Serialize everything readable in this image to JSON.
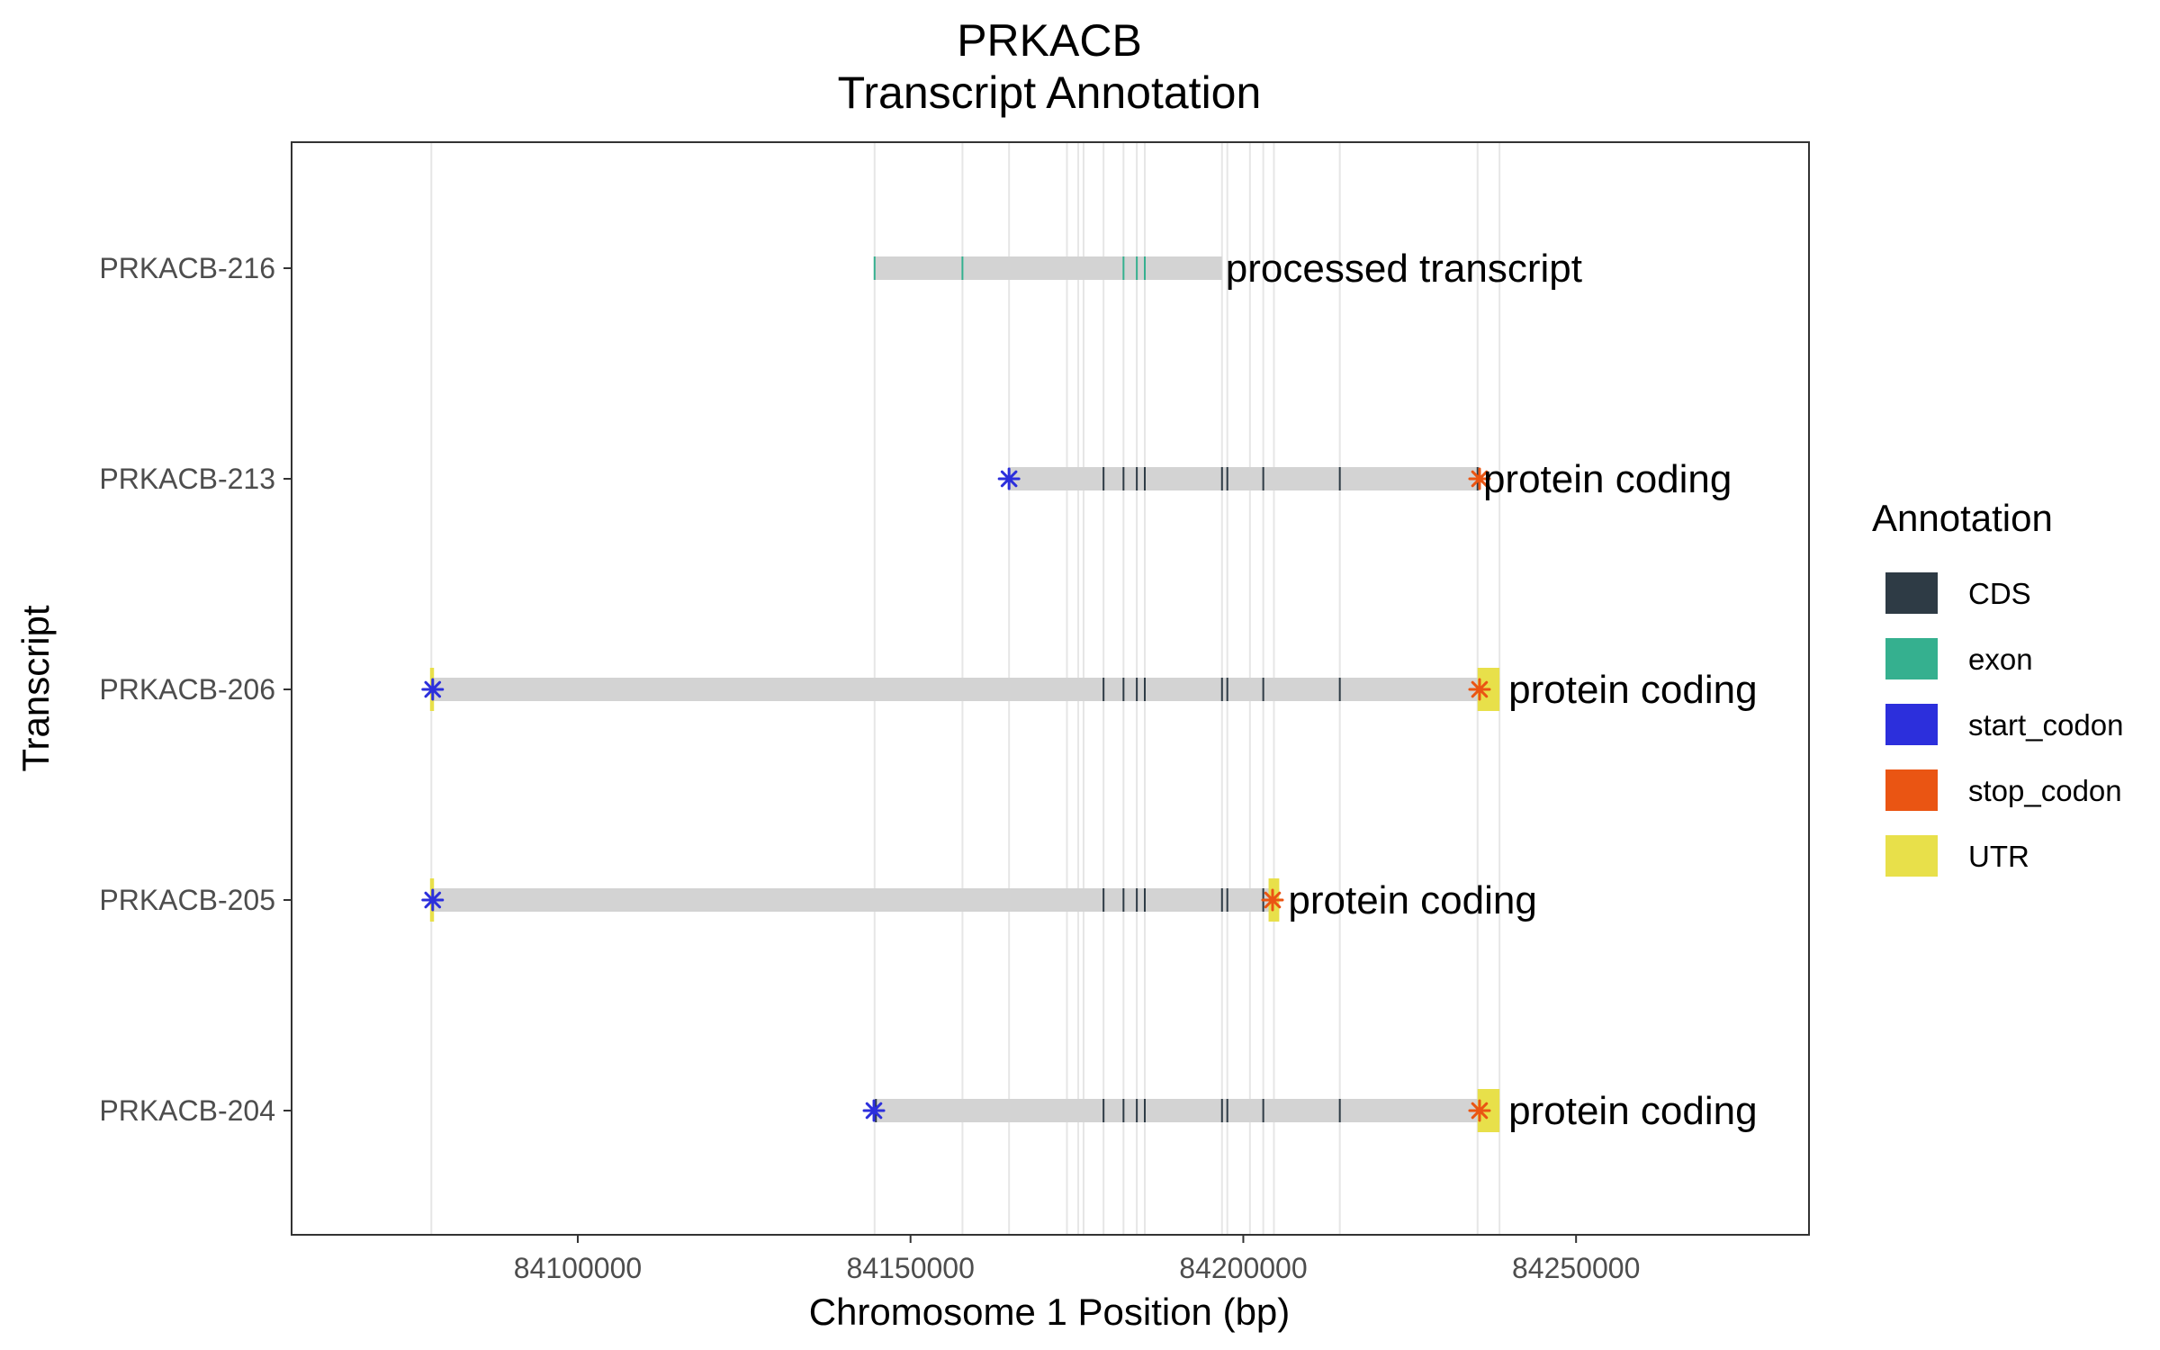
{
  "chart_data": {
    "type": "gene-track",
    "title": "PRKACB",
    "subtitle": "Transcript Annotation",
    "xlabel": "Chromosome 1 Position (bp)",
    "ylabel": "Transcript",
    "xlim": [
      84057000,
      84285000
    ],
    "x_ticks": [
      84100000,
      84150000,
      84200000,
      84250000
    ],
    "x_tick_labels": [
      "84100000",
      "84150000",
      "84200000",
      "84250000"
    ],
    "grid": true,
    "legend_position": "right",
    "legend": {
      "title": "Annotation",
      "items": [
        {
          "key": "CDS",
          "label": "CDS",
          "color": "#2e3b45"
        },
        {
          "key": "exon",
          "label": "exon",
          "color": "#35b08f"
        },
        {
          "key": "start_codon",
          "label": "start_codon",
          "color": "#2c2fdc"
        },
        {
          "key": "stop_codon",
          "label": "stop_codon",
          "color": "#ea5513"
        },
        {
          "key": "UTR",
          "label": "UTR",
          "color": "#e8e04a"
        }
      ]
    },
    "transcripts": [
      {
        "name": "PRKACB-216",
        "biotype": "processed transcript",
        "start": 84144600,
        "end": 84196800,
        "exons": [
          84144600,
          84157800,
          84182000,
          84184000,
          84185200
        ],
        "cds": [],
        "start_codon": null,
        "stop_codon": null,
        "utr": []
      },
      {
        "name": "PRKACB-213",
        "biotype": "protein coding",
        "start": 84164800,
        "end": 84235500,
        "exons": [],
        "cds": [
          84179000,
          84182000,
          84184000,
          84185200,
          84196800,
          84197600,
          84203000,
          84214500,
          84235200
        ],
        "start_codon": 84164800,
        "stop_codon": 84235500,
        "utr": []
      },
      {
        "name": "PRKACB-206",
        "biotype": "protein coding",
        "start": 84078000,
        "end": 84238500,
        "exons": [],
        "cds": [
          84179000,
          84182000,
          84184000,
          84185200,
          84196800,
          84197600,
          84203000,
          84214500
        ],
        "start_codon": 84078200,
        "stop_codon": 84235500,
        "utr": [
          [
            84077800,
            84078400
          ],
          [
            84235200,
            84238500
          ]
        ]
      },
      {
        "name": "PRKACB-205",
        "biotype": "protein coding",
        "start": 84078000,
        "end": 84205400,
        "exons": [],
        "cds": [
          84179000,
          84182000,
          84184000,
          84185200,
          84196800,
          84197600,
          84203000
        ],
        "start_codon": 84078200,
        "stop_codon": 84204400,
        "utr": [
          [
            84077800,
            84078400
          ],
          [
            84203800,
            84205400
          ]
        ]
      },
      {
        "name": "PRKACB-204",
        "biotype": "protein coding",
        "start": 84144600,
        "end": 84238500,
        "exons": [],
        "cds": [
          84144800,
          84179000,
          84182000,
          84184000,
          84185200,
          84196800,
          84197600,
          84203000,
          84214500
        ],
        "start_codon": 84144500,
        "stop_codon": 84235500,
        "utr": [
          [
            84235200,
            84238500
          ]
        ]
      }
    ],
    "vertical_gridlines": [
      84078000,
      84144600,
      84157800,
      84164800,
      84173500,
      84175200,
      84176000,
      84179000,
      84182000,
      84184000,
      84185200,
      84196800,
      84197600,
      84201000,
      84203000,
      84204600,
      84214500,
      84235200,
      84238500
    ]
  }
}
